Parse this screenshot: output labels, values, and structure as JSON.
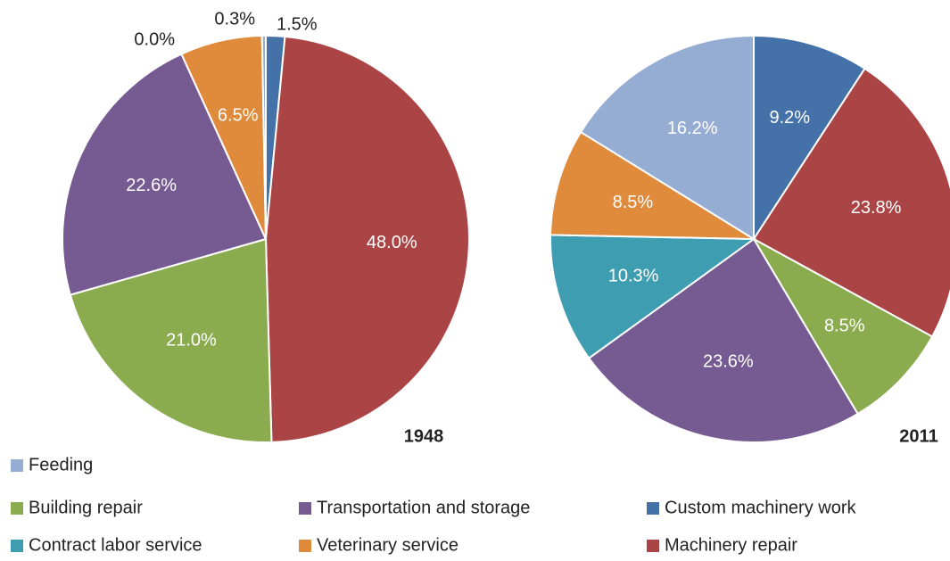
{
  "chart_data": [
    {
      "type": "pie",
      "title": "1948",
      "categories": [
        "Custom machinery work",
        "Machinery repair",
        "Building repair",
        "Transportation and storage",
        "Contract labor service",
        "Veterinary service",
        "Feeding"
      ],
      "values": [
        1.5,
        48.0,
        21.0,
        22.6,
        0.0,
        6.5,
        0.3
      ],
      "value_labels": [
        "1.5%",
        "48.0%",
        "21.0%",
        "22.6%",
        "0.0%",
        "6.5%",
        "0.3%"
      ],
      "colors": [
        "#4472a8",
        "#ab4545",
        "#8aab4e",
        "#765a92",
        "#3f9db2",
        "#e08a3c",
        "#95acd3"
      ]
    },
    {
      "type": "pie",
      "title": "2011",
      "categories": [
        "Custom machinery work",
        "Machinery repair",
        "Building repair",
        "Transportation and storage",
        "Contract labor service",
        "Veterinary service",
        "Feeding"
      ],
      "values": [
        9.2,
        23.8,
        8.5,
        23.6,
        10.3,
        8.5,
        16.2
      ],
      "value_labels": [
        "9.2%",
        "23.8%",
        "8.5%",
        "23.6%",
        "10.3%",
        "8.5%",
        "16.2%"
      ],
      "colors": [
        "#4472a8",
        "#ab4545",
        "#8aab4e",
        "#765a92",
        "#3f9db2",
        "#e08a3c",
        "#95acd3"
      ]
    }
  ]
}
